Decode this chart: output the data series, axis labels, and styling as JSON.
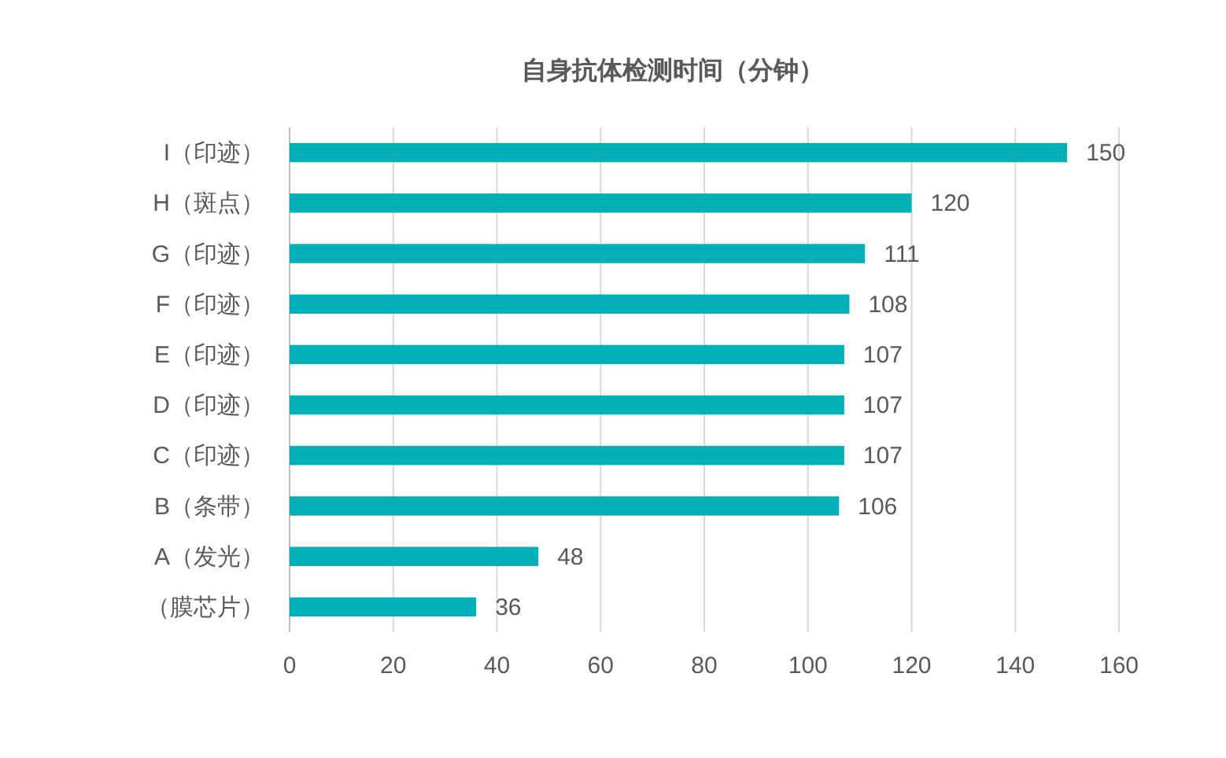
{
  "chart_data": {
    "type": "bar",
    "orientation": "horizontal",
    "title": "自身抗体检测时间（分钟）",
    "categories": [
      "I（印迹）",
      "H（斑点）",
      "G（印迹）",
      "F（印迹）",
      "E（印迹）",
      "D（印迹）",
      "C（印迹）",
      "B（条带）",
      "A（发光）",
      "（膜芯片）"
    ],
    "values": [
      150,
      120,
      111,
      108,
      107,
      107,
      107,
      106,
      48,
      36
    ],
    "color": "#00b0b9",
    "xlim": [
      0,
      160
    ],
    "xticks": [
      0,
      20,
      40,
      60,
      80,
      100,
      120,
      140,
      160
    ],
    "grid": "x",
    "data_labels": true
  }
}
